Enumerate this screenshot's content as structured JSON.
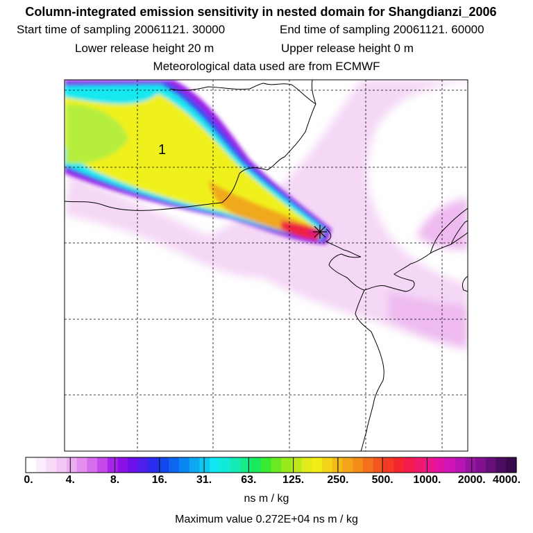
{
  "header": {
    "title": "Column-integrated emission sensitivity in nested domain for Shangdianzi_2006",
    "start_label": "Start time of sampling 20061121. 30000",
    "end_label": "End time of sampling 20061121. 60000",
    "lower_label": "Lower release height   20 m",
    "upper_label": "Upper release height    0 m",
    "met_label": "Meteorological data used are from ECMWF"
  },
  "map": {
    "cluster_label": "1",
    "colors": {
      "outer_lavender": "#f4d8f6",
      "light_magenta": "#eebaf0",
      "magenta": "#e48ef0",
      "violet": "#9a1ee8",
      "blue": "#3a4cf0",
      "cyan": "#16e8f0",
      "green_yellow": "#b6ee3c",
      "yellow": "#f0f01e",
      "orange": "#f0a81e",
      "red": "#f02040",
      "frame": "#000000"
    }
  },
  "colorbar": {
    "tick_labels": [
      "0.",
      "4.",
      "8.",
      "16.",
      "31.",
      "63.",
      "125.",
      "250.",
      "500.",
      "1000.",
      "2000.",
      "4000."
    ],
    "colors": [
      "#ffffff",
      "#fbeefc",
      "#f7dcf9",
      "#f2c6f6",
      "#ecaef3",
      "#e48ef0",
      "#d66cee",
      "#c44aea",
      "#a824e8",
      "#8a10e6",
      "#6a10e8",
      "#4a20ea",
      "#2a2cee",
      "#1446ee",
      "#0c66f0",
      "#0a86f0",
      "#0ca8f0",
      "#0ec8f0",
      "#12e6f0",
      "#12ead8",
      "#14eab4",
      "#16ea8a",
      "#18ea5c",
      "#38ea30",
      "#6aea24",
      "#96ea1e",
      "#beea1c",
      "#e2ea1a",
      "#f4ec18",
      "#f4d418",
      "#f4bc18",
      "#f4a418",
      "#f48c1a",
      "#f4701c",
      "#f4541e",
      "#f43a22",
      "#f42630",
      "#f41c4c",
      "#f01a6c",
      "#ec168a",
      "#e014a4",
      "#d014b6",
      "#b814b4",
      "#9c14a4",
      "#801290",
      "#640f7a",
      "#4c0c62",
      "#380a4c"
    ],
    "unit_label": "ns m / kg",
    "max_label": "Maximum value  0.272E+04 ns m / kg"
  }
}
